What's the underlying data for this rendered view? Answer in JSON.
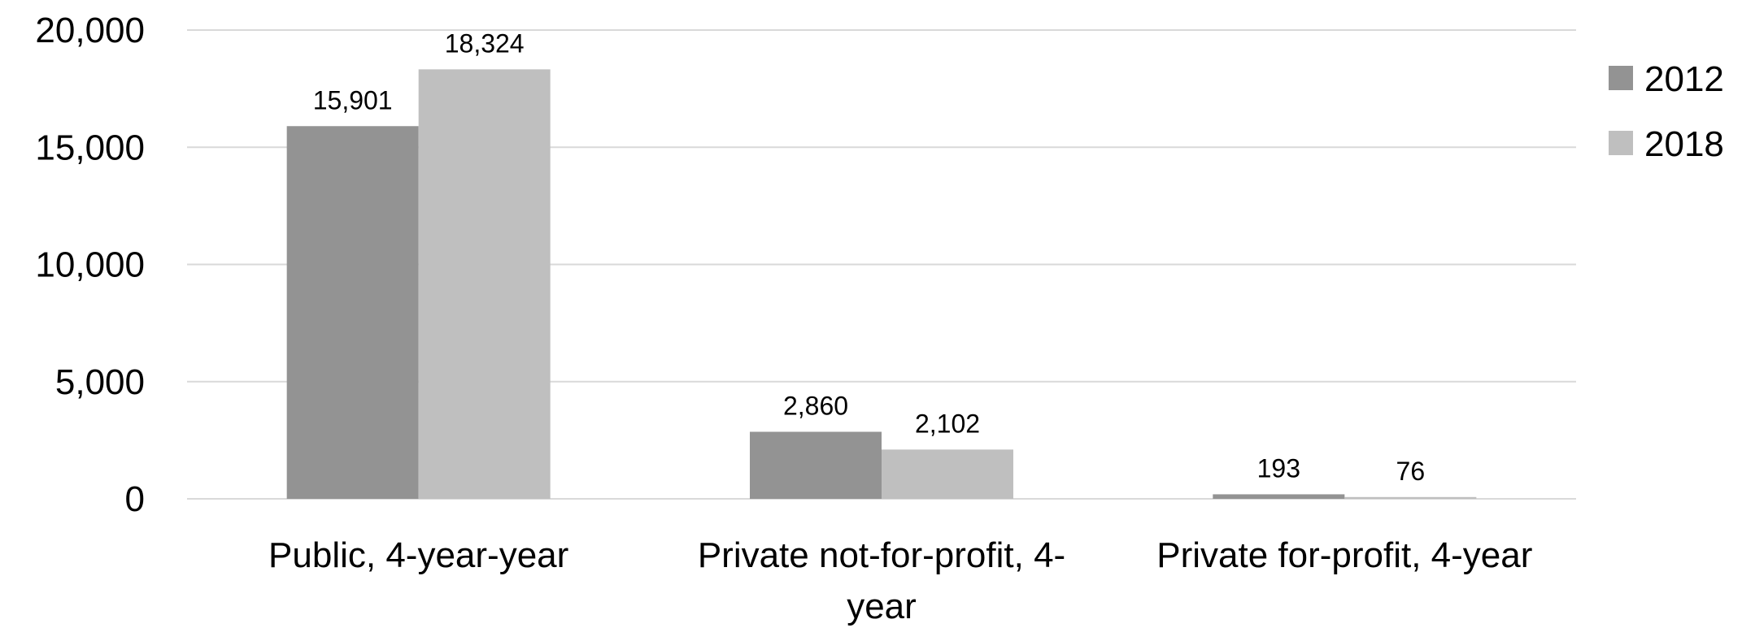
{
  "chart_data": {
    "type": "bar",
    "title": "",
    "xlabel": "",
    "ylabel": "",
    "categories": [
      "Public, 4-year-year",
      "Private not-for-profit, 4-year",
      "Private for-profit, 4-year"
    ],
    "category_label_lines": [
      [
        "Public, 4-year-year"
      ],
      [
        "Private not-for-profit, 4-",
        "year"
      ],
      [
        "Private for-profit, 4-year"
      ]
    ],
    "series": [
      {
        "name": "2012",
        "values": [
          15901,
          2860,
          193
        ],
        "labels": [
          "15,901",
          "2,860",
          "193"
        ],
        "color": "#939393"
      },
      {
        "name": "2018",
        "values": [
          18324,
          2102,
          76
        ],
        "labels": [
          "18,324",
          "2,102",
          "76"
        ],
        "color": "#bfbfbf"
      }
    ],
    "ylim": [
      0,
      20000
    ],
    "yticks": [
      0,
      5000,
      10000,
      15000,
      20000
    ],
    "ytick_labels": [
      "0",
      "5,000",
      "10,000",
      "15,000",
      "20,000"
    ],
    "grid": true,
    "legend": "right",
    "gridline_color": "#d9d9d9"
  }
}
